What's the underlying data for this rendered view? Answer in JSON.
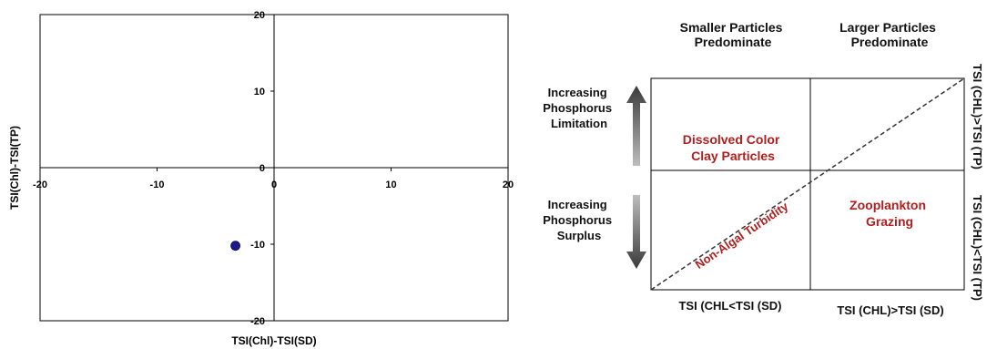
{
  "chart_data": [
    {
      "type": "scatter",
      "title": "",
      "xlabel": "TSI(Chl)-TSI(SD)",
      "ylabel": "TSI(Chl)-TSI(TP)",
      "xlim": [
        -20,
        20
      ],
      "ylim": [
        -20,
        20
      ],
      "x_ticks": [
        "-20",
        "-10",
        "0",
        "10",
        "20"
      ],
      "y_ticks": [
        "20",
        "10",
        "0",
        "-10",
        "-20"
      ],
      "grid": false,
      "series": [
        {
          "points": [
            {
              "x": -3.3,
              "y": -10.2
            }
          ],
          "color": "#1a1a8c"
        }
      ]
    },
    {
      "type": "diagram",
      "column_headers": [
        {
          "line1": "Smaller Particles",
          "line2": "Predominate"
        },
        {
          "line1": "Larger Particles",
          "line2": "Predominate"
        }
      ],
      "left_labels": [
        {
          "line1": "Increasing",
          "line2": "Phosphorus",
          "line3": "Limitation"
        },
        {
          "line1": "Increasing",
          "line2": "Phosphorus",
          "line3": "Surplus"
        }
      ],
      "right_labels": [
        "TSI (CHL)>TSI (TP)",
        "TSI (CHL)<TSI (TP)"
      ],
      "bottom_labels": [
        "TSI (CHL<TSI (SD)",
        "TSI (CHL)>TSI (SD)"
      ],
      "quadrant_labels": {
        "upper_left": {
          "line1": "Dissolved Color",
          "line2": "Clay Particles"
        },
        "lower_right": {
          "line1": "Zooplankton",
          "line2": "Grazing"
        }
      },
      "diagonal_label": "Non-Algal Turbidity",
      "colors": {
        "quadrant_text": "#b21e1e",
        "arrow": "#555555"
      }
    }
  ]
}
